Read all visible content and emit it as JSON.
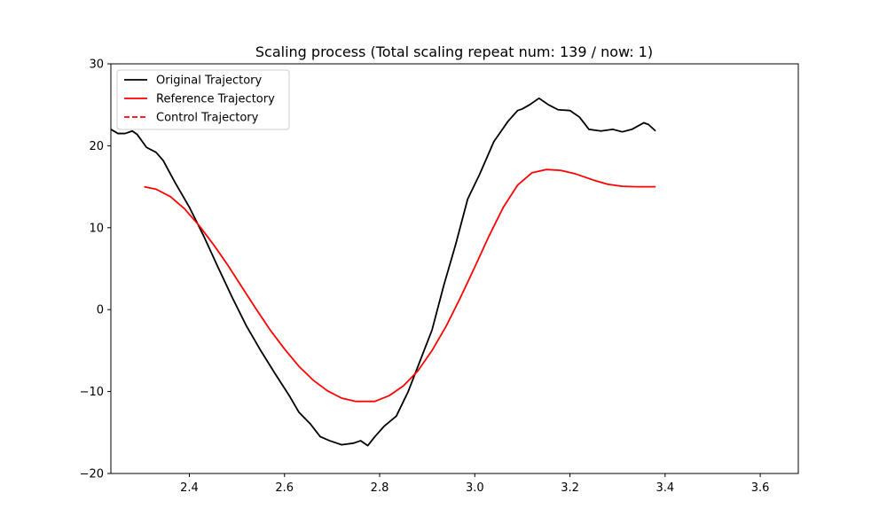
{
  "chart_data": {
    "type": "line",
    "title": "Scaling process (Total scaling repeat num: 139 / now: 1)",
    "xlabel": "",
    "ylabel": "",
    "xlim": [
      2.235,
      3.68
    ],
    "ylim": [
      -20,
      30
    ],
    "x_ticks": [
      2.4,
      2.6,
      2.8,
      3.0,
      3.2,
      3.4,
      3.6
    ],
    "x_tick_labels": [
      "2.4",
      "2.6",
      "2.8",
      "3.0",
      "3.2",
      "3.4",
      "3.6"
    ],
    "y_ticks": [
      30,
      20,
      10,
      0,
      -10,
      -20
    ],
    "y_tick_labels": [
      "30",
      "20",
      "10",
      "0",
      "−10",
      "−20"
    ],
    "grid": false,
    "legend_position": "top-left",
    "series": [
      {
        "name": "Original Trajectory",
        "color": "#000000",
        "dash": "solid",
        "points": [
          [
            2.235,
            22.0
          ],
          [
            2.25,
            21.5
          ],
          [
            2.265,
            21.5
          ],
          [
            2.28,
            21.8
          ],
          [
            2.29,
            21.4
          ],
          [
            2.31,
            19.8
          ],
          [
            2.33,
            19.2
          ],
          [
            2.345,
            18.2
          ],
          [
            2.37,
            15.5
          ],
          [
            2.4,
            12.5
          ],
          [
            2.43,
            9.0
          ],
          [
            2.46,
            5.2
          ],
          [
            2.49,
            1.5
          ],
          [
            2.52,
            -2.0
          ],
          [
            2.55,
            -5.0
          ],
          [
            2.58,
            -7.8
          ],
          [
            2.61,
            -10.5
          ],
          [
            2.63,
            -12.5
          ],
          [
            2.655,
            -14.0
          ],
          [
            2.675,
            -15.5
          ],
          [
            2.695,
            -16.0
          ],
          [
            2.72,
            -16.5
          ],
          [
            2.745,
            -16.3
          ],
          [
            2.76,
            -16.0
          ],
          [
            2.775,
            -16.6
          ],
          [
            2.79,
            -15.5
          ],
          [
            2.81,
            -14.2
          ],
          [
            2.835,
            -13.0
          ],
          [
            2.86,
            -10.0
          ],
          [
            2.88,
            -7.0
          ],
          [
            2.91,
            -2.5
          ],
          [
            2.935,
            3.0
          ],
          [
            2.96,
            8.0
          ],
          [
            2.985,
            13.5
          ],
          [
            3.01,
            16.5
          ],
          [
            3.04,
            20.5
          ],
          [
            3.07,
            23.0
          ],
          [
            3.09,
            24.3
          ],
          [
            3.1,
            24.5
          ],
          [
            3.115,
            25.0
          ],
          [
            3.135,
            25.8
          ],
          [
            3.155,
            25.0
          ],
          [
            3.175,
            24.4
          ],
          [
            3.2,
            24.3
          ],
          [
            3.22,
            23.5
          ],
          [
            3.24,
            22.0
          ],
          [
            3.265,
            21.8
          ],
          [
            3.29,
            22.0
          ],
          [
            3.31,
            21.7
          ],
          [
            3.33,
            22.0
          ],
          [
            3.355,
            22.8
          ],
          [
            3.365,
            22.6
          ],
          [
            3.38,
            21.8
          ]
        ]
      },
      {
        "name": "Reference Trajectory",
        "color": "#ff0000",
        "dash": "solid",
        "points": [
          [
            2.305,
            15.0
          ],
          [
            2.33,
            14.7
          ],
          [
            2.36,
            13.8
          ],
          [
            2.39,
            12.3
          ],
          [
            2.42,
            10.3
          ],
          [
            2.45,
            8.0
          ],
          [
            2.48,
            5.5
          ],
          [
            2.51,
            2.8
          ],
          [
            2.54,
            0.1
          ],
          [
            2.57,
            -2.5
          ],
          [
            2.6,
            -4.8
          ],
          [
            2.63,
            -6.9
          ],
          [
            2.66,
            -8.6
          ],
          [
            2.69,
            -9.9
          ],
          [
            2.72,
            -10.8
          ],
          [
            2.75,
            -11.2
          ],
          [
            2.79,
            -11.2
          ],
          [
            2.82,
            -10.5
          ],
          [
            2.85,
            -9.3
          ],
          [
            2.88,
            -7.5
          ],
          [
            2.91,
            -5.0
          ],
          [
            2.94,
            -2.0
          ],
          [
            2.97,
            1.5
          ],
          [
            3.0,
            5.2
          ],
          [
            3.03,
            9.0
          ],
          [
            3.06,
            12.5
          ],
          [
            3.09,
            15.2
          ],
          [
            3.12,
            16.7
          ],
          [
            3.15,
            17.1
          ],
          [
            3.18,
            17.0
          ],
          [
            3.21,
            16.6
          ],
          [
            3.25,
            15.8
          ],
          [
            3.28,
            15.3
          ],
          [
            3.31,
            15.05
          ],
          [
            3.34,
            15.0
          ],
          [
            3.38,
            15.0
          ]
        ]
      },
      {
        "name": "Control Trajectory",
        "color": "#ff0000",
        "dash": "dashed",
        "points": []
      }
    ]
  }
}
